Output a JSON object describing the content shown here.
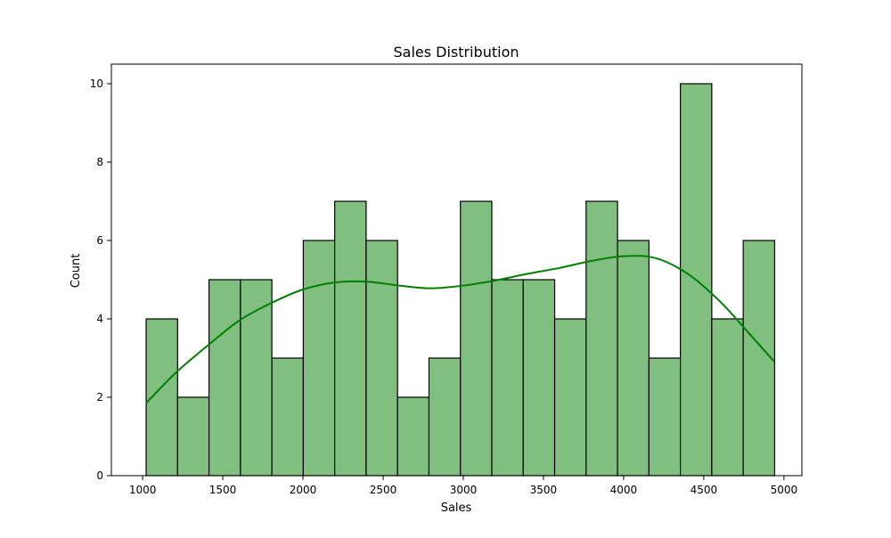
{
  "chart_data": {
    "type": "bar",
    "subtype": "histogram with kde",
    "title": "Sales Distribution",
    "xlabel": "Sales",
    "ylabel": "Count",
    "xlim": [
      805,
      5112
    ],
    "ylim": [
      0,
      10.5
    ],
    "xticks": [
      1000,
      1500,
      2000,
      2500,
      3000,
      3500,
      4000,
      4500,
      5000
    ],
    "yticks": [
      0,
      2,
      4,
      6,
      8,
      10
    ],
    "bin_edges": [
      1022,
      1218,
      1414,
      1610,
      1806,
      2002,
      2198,
      2394,
      2590,
      2786,
      2982,
      3178,
      3374,
      3570,
      3766,
      3962,
      4158,
      4354,
      4550,
      4746,
      4942
    ],
    "counts": [
      4,
      2,
      5,
      5,
      3,
      6,
      7,
      6,
      2,
      3,
      7,
      5,
      5,
      4,
      7,
      6,
      3,
      10,
      4,
      6
    ],
    "kde": {
      "x": [
        1022,
        1200,
        1400,
        1600,
        1800,
        2000,
        2200,
        2400,
        2600,
        2800,
        3000,
        3200,
        3400,
        3600,
        3800,
        4000,
        4200,
        4400,
        4600,
        4800,
        4942
      ],
      "y": [
        1.85,
        2.6,
        3.3,
        3.95,
        4.4,
        4.75,
        4.93,
        4.95,
        4.85,
        4.78,
        4.85,
        4.98,
        5.15,
        5.3,
        5.48,
        5.6,
        5.55,
        5.15,
        4.45,
        3.55,
        2.9
      ]
    },
    "bar_color": "#80bf80",
    "bar_edge_color": "#000000",
    "kde_color": "#008000",
    "grid": false,
    "legend": "none"
  }
}
